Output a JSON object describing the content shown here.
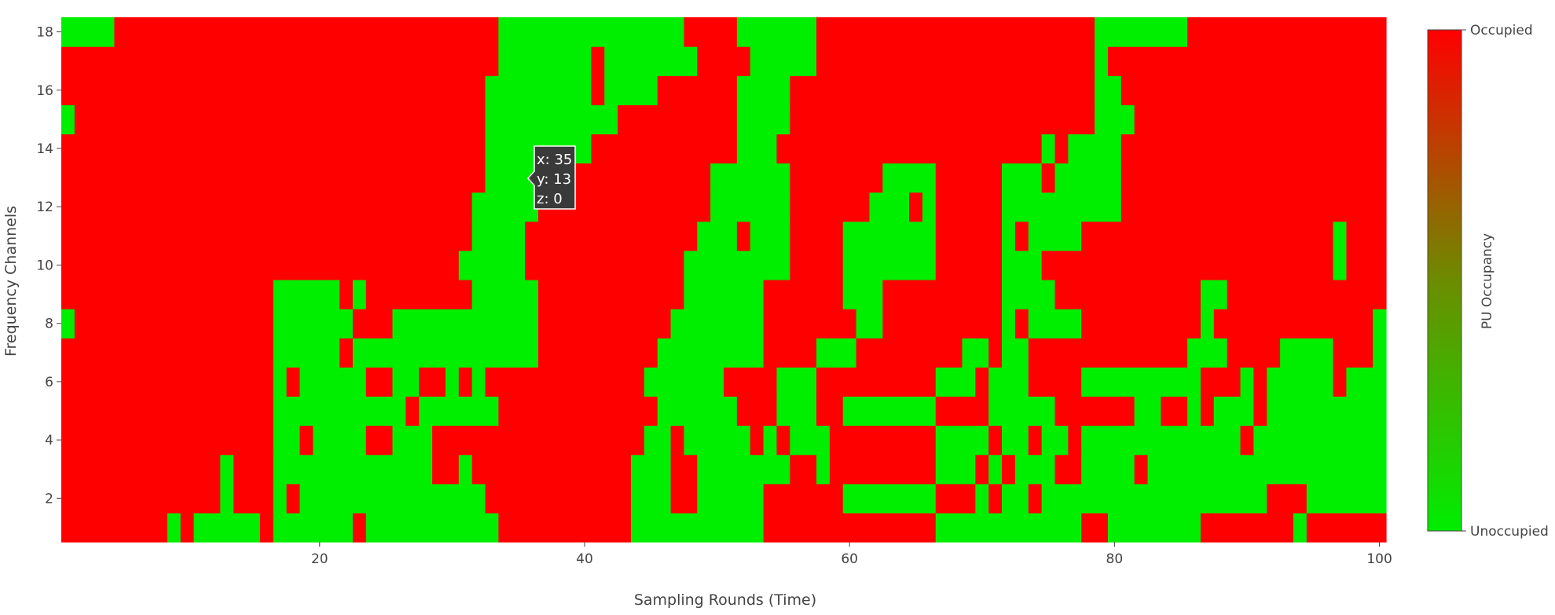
{
  "chart_data": {
    "type": "heatmap",
    "title": "",
    "xlabel": "Sampling Rounds (Time)",
    "ylabel": "Frequency Channels",
    "xlim": [
      0.5,
      100.5
    ],
    "ylim": [
      0.5,
      18.5
    ],
    "x_ticks": [
      20,
      40,
      60,
      80,
      100
    ],
    "y_ticks": [
      2,
      4,
      6,
      8,
      10,
      12,
      14,
      16,
      18
    ],
    "colorscale": [
      [
        0,
        "#00ee00"
      ],
      [
        1,
        "#ff0000"
      ]
    ],
    "colorbar": {
      "title": "PU Occupancy",
      "tick_labels": [
        "Unoccupied",
        "Occupied"
      ],
      "tick_values": [
        0,
        1
      ]
    },
    "hover": {
      "x": 35,
      "y": 13,
      "z": 0,
      "x_text": "x: 35",
      "y_text": "y: 13",
      "z_text": "z: 0"
    },
    "rows": {
      "1": [
        [
          1,
          8,
          1
        ],
        [
          9,
          9,
          0
        ],
        [
          10,
          10,
          1
        ],
        [
          11,
          13,
          0
        ],
        [
          14,
          14,
          0
        ],
        [
          15,
          15,
          0
        ],
        [
          16,
          16,
          1
        ],
        [
          17,
          22,
          0
        ],
        [
          23,
          23,
          1
        ],
        [
          24,
          33,
          0
        ],
        [
          34,
          43,
          1
        ],
        [
          44,
          53,
          0
        ],
        [
          54,
          66,
          1
        ],
        [
          67,
          77,
          0
        ],
        [
          78,
          79,
          1
        ],
        [
          80,
          86,
          0
        ],
        [
          87,
          93,
          1
        ],
        [
          94,
          94,
          0
        ],
        [
          95,
          100,
          1
        ]
      ],
      "2": [
        [
          1,
          12,
          1
        ],
        [
          13,
          13,
          0
        ],
        [
          14,
          16,
          1
        ],
        [
          17,
          17,
          0
        ],
        [
          18,
          18,
          1
        ],
        [
          19,
          32,
          0
        ],
        [
          33,
          43,
          1
        ],
        [
          44,
          46,
          0
        ],
        [
          47,
          48,
          1
        ],
        [
          49,
          53,
          0
        ],
        [
          54,
          59,
          1
        ],
        [
          60,
          66,
          0
        ],
        [
          67,
          69,
          1
        ],
        [
          70,
          70,
          0
        ],
        [
          71,
          71,
          1
        ],
        [
          72,
          73,
          0
        ],
        [
          74,
          74,
          1
        ],
        [
          75,
          91,
          0
        ],
        [
          92,
          94,
          1
        ],
        [
          95,
          100,
          0
        ]
      ],
      "3": [
        [
          1,
          12,
          1
        ],
        [
          13,
          13,
          0
        ],
        [
          14,
          16,
          1
        ],
        [
          17,
          28,
          0
        ],
        [
          29,
          30,
          1
        ],
        [
          31,
          31,
          0
        ],
        [
          32,
          43,
          1
        ],
        [
          44,
          46,
          0
        ],
        [
          47,
          48,
          1
        ],
        [
          49,
          55,
          0
        ],
        [
          56,
          57,
          1
        ],
        [
          58,
          58,
          0
        ],
        [
          59,
          66,
          1
        ],
        [
          67,
          69,
          0
        ],
        [
          70,
          70,
          1
        ],
        [
          71,
          71,
          0
        ],
        [
          72,
          72,
          1
        ],
        [
          73,
          75,
          0
        ],
        [
          76,
          77,
          1
        ],
        [
          78,
          81,
          0
        ],
        [
          82,
          82,
          1
        ],
        [
          83,
          100,
          0
        ]
      ],
      "4": [
        [
          1,
          16,
          1
        ],
        [
          17,
          18,
          0
        ],
        [
          19,
          19,
          1
        ],
        [
          20,
          23,
          0
        ],
        [
          24,
          25,
          1
        ],
        [
          26,
          28,
          0
        ],
        [
          29,
          44,
          1
        ],
        [
          45,
          46,
          0
        ],
        [
          47,
          47,
          1
        ],
        [
          48,
          52,
          0
        ],
        [
          53,
          53,
          1
        ],
        [
          54,
          54,
          0
        ],
        [
          55,
          55,
          1
        ],
        [
          56,
          58,
          0
        ],
        [
          59,
          66,
          1
        ],
        [
          67,
          70,
          0
        ],
        [
          71,
          71,
          1
        ],
        [
          72,
          73,
          0
        ],
        [
          74,
          74,
          1
        ],
        [
          75,
          76,
          0
        ],
        [
          77,
          77,
          1
        ],
        [
          78,
          89,
          0
        ],
        [
          90,
          90,
          1
        ],
        [
          91,
          100,
          0
        ]
      ],
      "5": [
        [
          1,
          16,
          1
        ],
        [
          17,
          26,
          0
        ],
        [
          27,
          27,
          1
        ],
        [
          28,
          33,
          0
        ],
        [
          34,
          45,
          1
        ],
        [
          46,
          51,
          0
        ],
        [
          52,
          54,
          1
        ],
        [
          55,
          57,
          0
        ],
        [
          58,
          59,
          1
        ],
        [
          60,
          66,
          0
        ],
        [
          67,
          70,
          1
        ],
        [
          71,
          75,
          0
        ],
        [
          76,
          81,
          1
        ],
        [
          82,
          83,
          0
        ],
        [
          84,
          85,
          1
        ],
        [
          86,
          86,
          0
        ],
        [
          87,
          87,
          1
        ],
        [
          88,
          90,
          0
        ],
        [
          91,
          91,
          1
        ],
        [
          92,
          93,
          0
        ],
        [
          94,
          100,
          0
        ]
      ],
      "6": [
        [
          1,
          16,
          1
        ],
        [
          17,
          17,
          0
        ],
        [
          18,
          18,
          1
        ],
        [
          19,
          23,
          0
        ],
        [
          24,
          25,
          1
        ],
        [
          26,
          27,
          0
        ],
        [
          28,
          29,
          1
        ],
        [
          30,
          30,
          0
        ],
        [
          31,
          31,
          1
        ],
        [
          32,
          32,
          0
        ],
        [
          33,
          44,
          1
        ],
        [
          45,
          50,
          0
        ],
        [
          51,
          54,
          1
        ],
        [
          55,
          57,
          0
        ],
        [
          58,
          66,
          1
        ],
        [
          67,
          69,
          0
        ],
        [
          70,
          70,
          1
        ],
        [
          71,
          73,
          0
        ],
        [
          74,
          77,
          1
        ],
        [
          78,
          86,
          0
        ],
        [
          87,
          89,
          1
        ],
        [
          90,
          90,
          0
        ],
        [
          91,
          91,
          1
        ],
        [
          92,
          96,
          0
        ],
        [
          97,
          97,
          1
        ],
        [
          98,
          98,
          0
        ],
        [
          99,
          100,
          0
        ]
      ],
      "7": [
        [
          1,
          16,
          1
        ],
        [
          17,
          21,
          0
        ],
        [
          22,
          22,
          1
        ],
        [
          23,
          23,
          0
        ],
        [
          24,
          36,
          0
        ],
        [
          37,
          45,
          1
        ],
        [
          46,
          53,
          0
        ],
        [
          54,
          57,
          1
        ],
        [
          58,
          60,
          0
        ],
        [
          61,
          68,
          1
        ],
        [
          69,
          70,
          0
        ],
        [
          71,
          71,
          1
        ],
        [
          72,
          73,
          0
        ],
        [
          74,
          85,
          1
        ],
        [
          86,
          88,
          0
        ],
        [
          89,
          92,
          1
        ],
        [
          93,
          96,
          0
        ],
        [
          97,
          99,
          1
        ],
        [
          100,
          100,
          0
        ]
      ],
      "8": [
        [
          1,
          1,
          0
        ],
        [
          2,
          16,
          1
        ],
        [
          17,
          22,
          0
        ],
        [
          23,
          25,
          1
        ],
        [
          26,
          36,
          0
        ],
        [
          37,
          46,
          1
        ],
        [
          47,
          53,
          0
        ],
        [
          54,
          60,
          1
        ],
        [
          61,
          62,
          0
        ],
        [
          63,
          71,
          1
        ],
        [
          72,
          72,
          0
        ],
        [
          73,
          73,
          1
        ],
        [
          74,
          77,
          0
        ],
        [
          78,
          86,
          1
        ],
        [
          87,
          87,
          0
        ],
        [
          88,
          96,
          1
        ],
        [
          97,
          99,
          1
        ],
        [
          100,
          100,
          0
        ]
      ],
      "9": [
        [
          1,
          16,
          1
        ],
        [
          17,
          21,
          0
        ],
        [
          22,
          22,
          1
        ],
        [
          23,
          23,
          0
        ],
        [
          24,
          31,
          1
        ],
        [
          32,
          36,
          0
        ],
        [
          37,
          47,
          1
        ],
        [
          48,
          53,
          0
        ],
        [
          54,
          59,
          1
        ],
        [
          60,
          62,
          0
        ],
        [
          63,
          71,
          1
        ],
        [
          72,
          75,
          0
        ],
        [
          76,
          86,
          1
        ],
        [
          87,
          88,
          0
        ],
        [
          89,
          100,
          1
        ]
      ],
      "10": [
        [
          1,
          30,
          1
        ],
        [
          31,
          35,
          0
        ],
        [
          36,
          47,
          1
        ],
        [
          48,
          55,
          0
        ],
        [
          56,
          59,
          1
        ],
        [
          60,
          66,
          0
        ],
        [
          67,
          71,
          1
        ],
        [
          72,
          74,
          0
        ],
        [
          75,
          96,
          1
        ],
        [
          97,
          97,
          0
        ],
        [
          98,
          100,
          1
        ]
      ],
      "11": [
        [
          1,
          31,
          1
        ],
        [
          32,
          35,
          0
        ],
        [
          36,
          48,
          1
        ],
        [
          49,
          51,
          0
        ],
        [
          52,
          52,
          1
        ],
        [
          53,
          55,
          0
        ],
        [
          56,
          59,
          1
        ],
        [
          60,
          66,
          0
        ],
        [
          67,
          71,
          1
        ],
        [
          72,
          72,
          0
        ],
        [
          73,
          73,
          1
        ],
        [
          74,
          77,
          0
        ],
        [
          78,
          96,
          1
        ],
        [
          97,
          97,
          0
        ],
        [
          98,
          100,
          1
        ]
      ],
      "12": [
        [
          1,
          31,
          1
        ],
        [
          32,
          36,
          0
        ],
        [
          37,
          49,
          1
        ],
        [
          50,
          55,
          0
        ],
        [
          56,
          61,
          1
        ],
        [
          62,
          64,
          0
        ],
        [
          65,
          65,
          1
        ],
        [
          66,
          66,
          0
        ],
        [
          67,
          71,
          1
        ],
        [
          72,
          80,
          0
        ],
        [
          81,
          100,
          1
        ]
      ],
      "13": [
        [
          1,
          32,
          1
        ],
        [
          33,
          38,
          0
        ],
        [
          39,
          41,
          1
        ],
        [
          42,
          49,
          1
        ],
        [
          50,
          55,
          0
        ],
        [
          56,
          62,
          1
        ],
        [
          63,
          66,
          0
        ],
        [
          67,
          71,
          1
        ],
        [
          72,
          74,
          0
        ],
        [
          75,
          75,
          1
        ],
        [
          76,
          80,
          0
        ],
        [
          81,
          100,
          1
        ]
      ],
      "14": [
        [
          1,
          32,
          1
        ],
        [
          33,
          40,
          0
        ],
        [
          41,
          51,
          1
        ],
        [
          52,
          54,
          0
        ],
        [
          55,
          74,
          1
        ],
        [
          75,
          75,
          0
        ],
        [
          76,
          76,
          1
        ],
        [
          77,
          80,
          0
        ],
        [
          81,
          100,
          1
        ]
      ],
      "15": [
        [
          1,
          1,
          0
        ],
        [
          2,
          32,
          1
        ],
        [
          33,
          42,
          0
        ],
        [
          43,
          51,
          1
        ],
        [
          52,
          55,
          0
        ],
        [
          56,
          78,
          1
        ],
        [
          79,
          81,
          0
        ],
        [
          82,
          100,
          1
        ]
      ],
      "16": [
        [
          1,
          32,
          1
        ],
        [
          33,
          40,
          0
        ],
        [
          41,
          41,
          1
        ],
        [
          42,
          45,
          0
        ],
        [
          46,
          51,
          1
        ],
        [
          52,
          55,
          0
        ],
        [
          56,
          78,
          1
        ],
        [
          79,
          80,
          0
        ],
        [
          81,
          100,
          1
        ]
      ],
      "17": [
        [
          1,
          33,
          1
        ],
        [
          34,
          40,
          0
        ],
        [
          41,
          41,
          1
        ],
        [
          42,
          48,
          0
        ],
        [
          49,
          52,
          1
        ],
        [
          53,
          57,
          0
        ],
        [
          58,
          78,
          1
        ],
        [
          79,
          79,
          0
        ],
        [
          80,
          100,
          1
        ]
      ],
      "18": [
        [
          1,
          4,
          0
        ],
        [
          5,
          33,
          1
        ],
        [
          34,
          47,
          0
        ],
        [
          48,
          51,
          1
        ],
        [
          52,
          57,
          0
        ],
        [
          58,
          78,
          1
        ],
        [
          79,
          85,
          0
        ],
        [
          86,
          100,
          1
        ]
      ]
    }
  }
}
